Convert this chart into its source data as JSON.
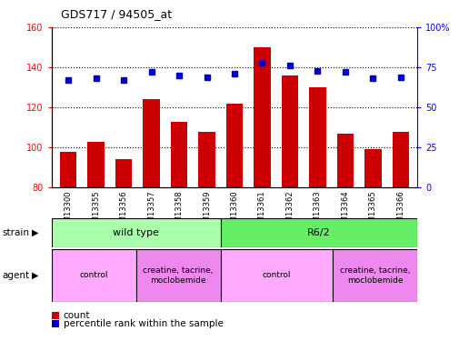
{
  "title": "GDS717 / 94505_at",
  "samples": [
    "GSM13300",
    "GSM13355",
    "GSM13356",
    "GSM13357",
    "GSM13358",
    "GSM13359",
    "GSM13360",
    "GSM13361",
    "GSM13362",
    "GSM13363",
    "GSM13364",
    "GSM13365",
    "GSM13366"
  ],
  "counts": [
    98,
    103,
    94,
    124,
    113,
    108,
    122,
    150,
    136,
    130,
    107,
    99,
    108
  ],
  "percentiles": [
    67,
    68,
    67,
    72,
    70,
    69,
    71,
    78,
    76,
    73,
    72,
    68,
    69
  ],
  "ylim_left": [
    80,
    160
  ],
  "ylim_right": [
    0,
    100
  ],
  "yticks_left": [
    80,
    100,
    120,
    140,
    160
  ],
  "yticks_right": [
    0,
    25,
    50,
    75,
    100
  ],
  "bar_color": "#cc0000",
  "dot_color": "#0000cc",
  "strain_groups": [
    {
      "label": "wild type",
      "start": 0,
      "end": 6,
      "color": "#aaffaa"
    },
    {
      "label": "R6/2",
      "start": 6,
      "end": 13,
      "color": "#66ee66"
    }
  ],
  "agent_groups": [
    {
      "label": "control",
      "start": 0,
      "end": 3,
      "color": "#ffaaff"
    },
    {
      "label": "creatine, tacrine,\nmoclobemide",
      "start": 3,
      "end": 6,
      "color": "#ee88ee"
    },
    {
      "label": "control",
      "start": 6,
      "end": 10,
      "color": "#ffaaff"
    },
    {
      "label": "creatine, tacrine,\nmoclobemide",
      "start": 10,
      "end": 13,
      "color": "#ee88ee"
    }
  ],
  "legend_count_label": "count",
  "legend_pct_label": "percentile rank within the sample"
}
